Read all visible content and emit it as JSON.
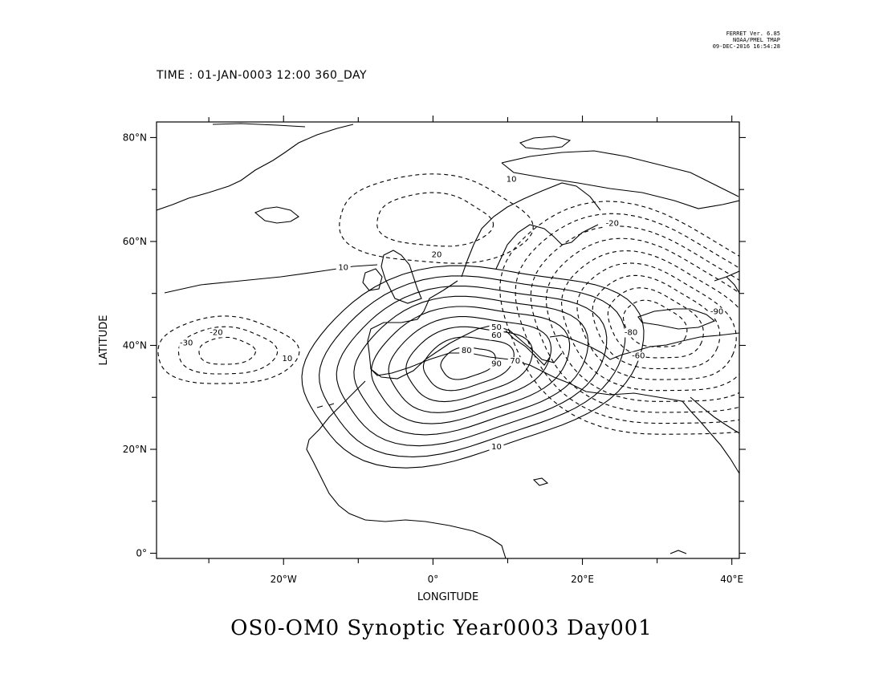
{
  "credit": {
    "line1": "FERRET Ver. 6.85",
    "line2": "NOAA/PMEL TMAP",
    "line3": "09-DEC-2016 16:54:28"
  },
  "time_label": "TIME : 01-JAN-0003 12:00 360_DAY",
  "title": "OS0-OM0 Synoptic Year0003 Day001",
  "axes": {
    "xlabel": "LONGITUDE",
    "ylabel": "LATITUDE",
    "xlim": [
      -37,
      41
    ],
    "ylim": [
      -1,
      83
    ],
    "xticks": [
      {
        "value": -20,
        "label": "20°W"
      },
      {
        "value": 0,
        "label": "0°"
      },
      {
        "value": 20,
        "label": "20°E"
      },
      {
        "value": 40,
        "label": "40°E"
      }
    ],
    "yticks": [
      {
        "value": 0,
        "label": "0°"
      },
      {
        "value": 20,
        "label": "20°N"
      },
      {
        "value": 40,
        "label": "40°N"
      },
      {
        "value": 60,
        "label": "60°N"
      },
      {
        "value": 80,
        "label": "80°N"
      }
    ],
    "minor_xticks": [
      -30,
      -10,
      10,
      30
    ],
    "minor_yticks": [
      10,
      30,
      50,
      70
    ]
  },
  "contour_labels": [
    {
      "text": "10",
      "lon": -12,
      "lat": 54.5
    },
    {
      "text": "10",
      "lon": 8.5,
      "lat": 20
    },
    {
      "text": "10",
      "lon": -19.5,
      "lat": 37
    },
    {
      "text": "-20",
      "lon": -29,
      "lat": 42
    },
    {
      "text": "-30",
      "lon": -33,
      "lat": 40
    },
    {
      "text": "80",
      "lon": 4.5,
      "lat": 38.5
    },
    {
      "text": "90",
      "lon": 8.5,
      "lat": 36
    },
    {
      "text": "70",
      "lon": 11,
      "lat": 36.5
    },
    {
      "text": "50",
      "lon": 8.5,
      "lat": 43
    },
    {
      "text": "60",
      "lon": 8.5,
      "lat": 41.5
    },
    {
      "text": "20",
      "lon": 0.5,
      "lat": 57
    },
    {
      "text": "10",
      "lon": 10.5,
      "lat": 71.5
    },
    {
      "text": "-20",
      "lon": 24,
      "lat": 63
    },
    {
      "text": "-80",
      "lon": 26.5,
      "lat": 42
    },
    {
      "text": "-60",
      "lon": 27.5,
      "lat": 37.5
    },
    {
      "text": "-90",
      "lon": 38,
      "lat": 46
    }
  ],
  "chart_data": {
    "type": "map",
    "variable": "OS0-OM0",
    "projection": "lat-lon",
    "contour_style": "solid = positive, dashed = negative",
    "contour_levels": [
      -90,
      -80,
      -70,
      -60,
      -50,
      -40,
      -30,
      -20,
      -10,
      10,
      20,
      30,
      40,
      50,
      60,
      70,
      80,
      90
    ],
    "features": [
      {
        "type": "positive_max",
        "approx_value": 90,
        "lon": 5,
        "lat": 34
      },
      {
        "type": "negative_min",
        "approx_value": -90,
        "lon": 33,
        "lat": 48
      },
      {
        "type": "negative_min",
        "approx_value": -30,
        "lon": -32,
        "lat": 40
      },
      {
        "type": "negative_min",
        "approx_value": -20,
        "lon": 0,
        "lat": 64
      }
    ]
  }
}
